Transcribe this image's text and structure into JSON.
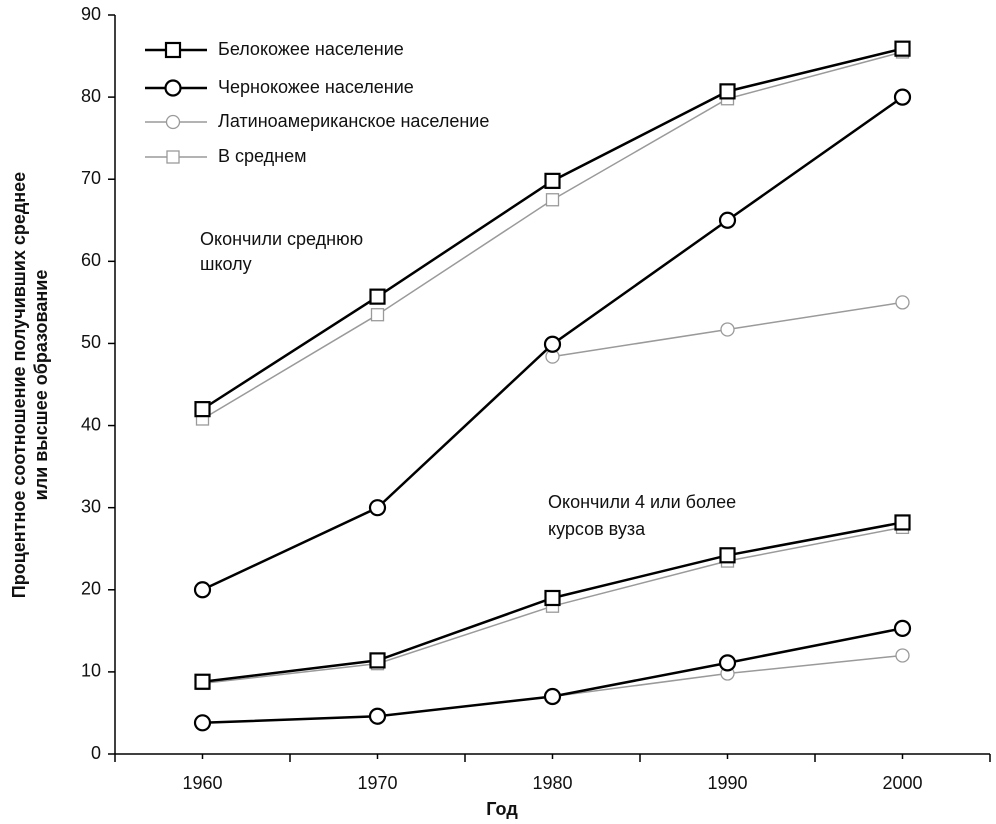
{
  "chart_data": {
    "type": "line",
    "ylabel": [
      "Процентное соотношение получивших среднее",
      "или высшее образование"
    ],
    "xlabel": "Год",
    "annotations": [
      [
        "Окончили среднюю",
        "школу"
      ],
      [
        "Окончили 4 или более",
        "курсов вуза"
      ]
    ],
    "x": [
      1960,
      1970,
      1980,
      1990,
      2000
    ],
    "series": [
      {
        "name": "Белокожее население",
        "color": "#000000",
        "marker": "square",
        "values": [
          42,
          55.7,
          69.8,
          80.7,
          85.9
        ],
        "college_values": [
          8.8,
          11.4,
          19,
          24.2,
          28.2
        ]
      },
      {
        "name": "Чернокожее население",
        "color": "#000000",
        "marker": "circle",
        "values": [
          20,
          30,
          49.9,
          65,
          80
        ],
        "college_values": [
          3.8,
          4.6,
          7,
          11.1,
          15.3
        ]
      },
      {
        "name": "Латиноамериканское население",
        "color": "#9a9a9a",
        "marker": "circle",
        "values": [
          null,
          null,
          48.4,
          51.7,
          55
        ],
        "college_values": [
          null,
          null,
          7,
          9.8,
          12
        ]
      },
      {
        "name": "В среднем",
        "color": "#9a9a9a",
        "marker": "square",
        "values": [
          40.8,
          53.5,
          67.5,
          79.8,
          85.5
        ],
        "college_values": [
          8.6,
          11,
          18,
          23.5,
          27.6
        ]
      }
    ],
    "xlim": [
      1955,
      2005
    ],
    "xticks": [
      1960,
      1970,
      1980,
      1990,
      2000
    ],
    "xminor_ticks": [
      1955,
      1965,
      1975,
      1985,
      1995,
      2005
    ],
    "ylim": [
      0,
      90
    ],
    "yticks": [
      0,
      10,
      20,
      30,
      40,
      50,
      60,
      70,
      80,
      90
    ],
    "grid": false
  }
}
